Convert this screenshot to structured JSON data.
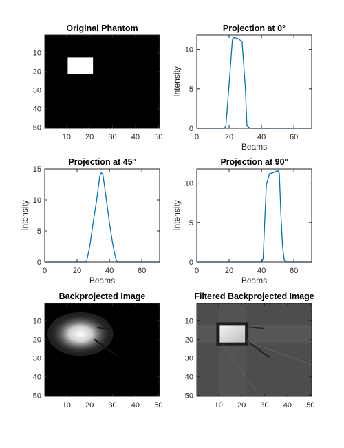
{
  "colors": {
    "line": "#0072bd",
    "axis": "#262626",
    "background": "#ffffff"
  },
  "chart_data": [
    {
      "type": "heatmap",
      "title": "Original Phantom",
      "xlim": [
        0.5,
        50.5
      ],
      "ylim": [
        0.5,
        50.5
      ],
      "xticks": [
        10,
        20,
        30,
        40,
        50
      ],
      "yticks": [
        10,
        20,
        30,
        40,
        50
      ],
      "y_direction": "reversed",
      "colormap": "gray",
      "features": [
        {
          "shape": "rect",
          "x0": 10.5,
          "x1": 21.5,
          "y0": 12.5,
          "y1": 21.5,
          "intensity": 1.0
        }
      ]
    },
    {
      "type": "line",
      "title": "Projection at 0°",
      "xlabel": "Beams",
      "ylabel": "Intensity",
      "xlim": [
        0,
        71
      ],
      "ylim": [
        0,
        11.8
      ],
      "xticks": [
        0,
        20,
        40,
        60
      ],
      "yticks": [
        0,
        5,
        10
      ],
      "x": [
        0,
        17,
        18,
        20,
        22,
        23,
        25,
        26,
        28,
        30,
        31,
        33,
        71
      ],
      "y": [
        0,
        0,
        0.3,
        5.6,
        11.2,
        11.5,
        11.4,
        11.3,
        11.0,
        5.2,
        0.3,
        0,
        0
      ]
    },
    {
      "type": "line",
      "title": "Projection at 45°",
      "xlabel": "Beams",
      "ylabel": "Intensity",
      "xlim": [
        0,
        71
      ],
      "ylim": [
        0,
        15
      ],
      "xticks": [
        0,
        20,
        40,
        60
      ],
      "yticks": [
        0,
        5,
        10,
        15
      ],
      "x": [
        0,
        25,
        26,
        28,
        30,
        32,
        34,
        35,
        36,
        38,
        40,
        42,
        44,
        45,
        71
      ],
      "y": [
        0,
        0,
        0.2,
        2.8,
        6.5,
        9.8,
        13.8,
        14.4,
        14.0,
        10.2,
        6.3,
        2.9,
        0.4,
        0,
        0
      ]
    },
    {
      "type": "line",
      "title": "Projection at 90°",
      "xlabel": "Beams",
      "ylabel": "Intensity",
      "xlim": [
        0,
        71
      ],
      "ylim": [
        0,
        11.8
      ],
      "xticks": [
        0,
        20,
        40,
        60
      ],
      "yticks": [
        0,
        5,
        10
      ],
      "x": [
        0,
        40,
        41,
        42,
        43,
        45,
        47,
        49,
        50,
        51,
        52,
        53,
        54,
        55,
        71
      ],
      "y": [
        0,
        0,
        0.4,
        5.2,
        9.8,
        11.2,
        11.3,
        11.5,
        11.6,
        11.3,
        6.0,
        2.0,
        0.3,
        0,
        0
      ]
    },
    {
      "type": "heatmap",
      "title": "Backprojected Image",
      "xlim": [
        0.5,
        50.5
      ],
      "ylim": [
        0.5,
        50.5
      ],
      "xticks": [
        10,
        20,
        30,
        40,
        50
      ],
      "yticks": [
        10,
        20,
        30,
        40,
        50
      ],
      "y_direction": "reversed",
      "colormap": "gray",
      "features": [
        {
          "shape": "blurred-rect",
          "x0": 10.5,
          "x1": 21.5,
          "y0": 12.5,
          "y1": 21.5,
          "intensity": 1.0
        }
      ]
    },
    {
      "type": "heatmap",
      "title": "Filtered Backprojected Image",
      "xlim": [
        0.5,
        50.5
      ],
      "ylim": [
        0.5,
        50.5
      ],
      "xticks": [
        10,
        20,
        30,
        40,
        50
      ],
      "yticks": [
        10,
        20,
        30,
        40,
        50
      ],
      "y_direction": "reversed",
      "colormap": "gray",
      "background_intensity": 0.3,
      "features": [
        {
          "shape": "rect",
          "x0": 10.5,
          "x1": 21.5,
          "y0": 12.5,
          "y1": 21.5,
          "intensity": 0.9
        }
      ]
    }
  ]
}
